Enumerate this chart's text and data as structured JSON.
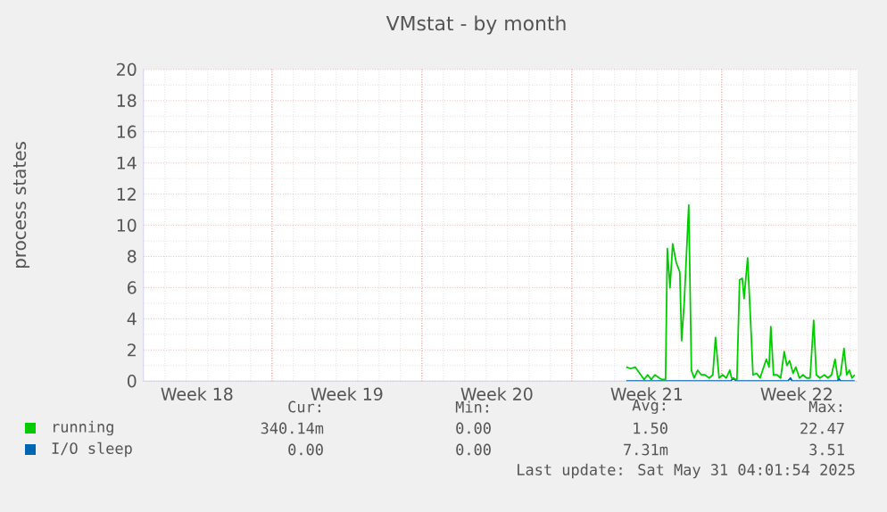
{
  "chart_data": {
    "type": "line",
    "title": "VMstat - by month",
    "ylabel": "process states",
    "xlim": [
      "2025-04-28T00:00",
      "2025-05-31T08:00"
    ],
    "ylim": [
      0,
      20
    ],
    "xticks": [
      {
        "value": "2025-04-30T12:00",
        "label": "Week 18"
      },
      {
        "value": "2025-05-07T12:00",
        "label": "Week 19"
      },
      {
        "value": "2025-05-14T12:00",
        "label": "Week 20"
      },
      {
        "value": "2025-05-21T12:00",
        "label": "Week 21"
      },
      {
        "value": "2025-05-28T12:00",
        "label": "Week 22"
      },
      {
        "value": "2025-05-04T00:00",
        "label": null
      },
      {
        "value": "2025-05-11T00:00",
        "label": null
      },
      {
        "value": "2025-05-18T00:00",
        "label": null
      },
      {
        "value": "2025-05-25T00:00",
        "label": null
      }
    ],
    "yticks": [
      0,
      2,
      4,
      6,
      8,
      10,
      12,
      14,
      16,
      18,
      20
    ],
    "grid": true,
    "legend": "bottom",
    "marker": "none",
    "line_style": "solid",
    "series": [
      {
        "name": "I/O sleep",
        "color": "#0066b3",
        "x": [
          "2025-05-20T13:00",
          "2025-05-25T10:00",
          "2025-05-25T13:00",
          "2025-05-25T16:00",
          "2025-05-28T02:00",
          "2025-05-28T05:00",
          "2025-05-28T07:00",
          "2025-05-30T10:00",
          "2025-05-30T11:00",
          "2025-05-30T13:00",
          "2025-05-31T05:00"
        ],
        "values": [
          0,
          0,
          0.2,
          0,
          0,
          0.2,
          0,
          0,
          0.2,
          0,
          0
        ]
      },
      {
        "name": "running",
        "color": "#00cc00",
        "x": [
          "2025-05-20T13:00",
          "2025-05-20T18:00",
          "2025-05-20T23:00",
          "2025-05-21T04:00",
          "2025-05-21T09:00",
          "2025-05-21T13:00",
          "2025-05-21T17:00",
          "2025-05-21T21:00",
          "2025-05-22T02:00",
          "2025-05-22T05:00",
          "2025-05-22T09:00",
          "2025-05-22T11:00",
          "2025-05-22T14:00",
          "2025-05-22T17:00",
          "2025-05-22T21:00",
          "2025-05-23T01:00",
          "2025-05-23T03:00",
          "2025-05-23T06:00",
          "2025-05-23T11:00",
          "2025-05-23T14:00",
          "2025-05-23T17:00",
          "2025-05-23T21:00",
          "2025-05-24T01:00",
          "2025-05-24T05:00",
          "2025-05-24T10:00",
          "2025-05-24T14:00",
          "2025-05-24T17:00",
          "2025-05-24T21:00",
          "2025-05-25T01:00",
          "2025-05-25T05:00",
          "2025-05-25T09:00",
          "2025-05-25T11:00",
          "2025-05-25T17:00",
          "2025-05-25T20:00",
          "2025-05-25T23:00",
          "2025-05-26T01:00",
          "2025-05-26T05:00",
          "2025-05-26T09:00",
          "2025-05-26T11:00",
          "2025-05-26T15:00",
          "2025-05-26T19:00",
          "2025-05-26T23:00",
          "2025-05-27T02:00",
          "2025-05-27T05:00",
          "2025-05-27T07:00",
          "2025-05-27T10:00",
          "2025-05-27T14:00",
          "2025-05-27T18:00",
          "2025-05-27T22:00",
          "2025-05-28T01:00",
          "2025-05-28T04:00",
          "2025-05-28T08:00",
          "2025-05-28T11:00",
          "2025-05-28T15:00",
          "2025-05-28T19:00",
          "2025-05-28T23:00",
          "2025-05-29T03:00",
          "2025-05-29T07:00",
          "2025-05-29T10:00",
          "2025-05-29T14:00",
          "2025-05-29T19:00",
          "2025-05-29T23:00",
          "2025-05-30T03:00",
          "2025-05-30T07:00",
          "2025-05-30T10:00",
          "2025-05-30T13:00",
          "2025-05-30T17:00",
          "2025-05-30T20:00",
          "2025-05-30T23:00",
          "2025-05-31T02:00",
          "2025-05-31T05:00"
        ],
        "values": [
          0.9,
          0.8,
          0.9,
          0.5,
          0.1,
          0.4,
          0.1,
          0.4,
          0.2,
          0.1,
          0.1,
          8.5,
          6,
          8.8,
          7.6,
          7,
          2.6,
          5.1,
          11.3,
          0.7,
          0.2,
          0.7,
          0.4,
          0.4,
          0.2,
          0.4,
          2.8,
          0.2,
          0.4,
          0.2,
          0.7,
          0.2,
          0.1,
          6.5,
          6.6,
          5.3,
          7.9,
          3,
          0.4,
          0.5,
          0.2,
          0.9,
          1.4,
          0.9,
          3.5,
          0.4,
          0.4,
          0.2,
          1.9,
          1,
          1.3,
          0.5,
          0.9,
          0.2,
          0.4,
          0.2,
          0.2,
          3.9,
          0.4,
          0.2,
          0.4,
          0.2,
          0.4,
          1.4,
          0.2,
          0.4,
          2.1,
          0.4,
          0.7,
          0.2,
          0.4
        ]
      }
    ],
    "annotations": [
      "Cur:",
      "Min:",
      "Avg:",
      "Max:",
      "340.14m",
      "0.00",
      "1.50",
      "22.47",
      "0.00",
      "0.00",
      "7.31m",
      "3.51",
      "Last update: Sat May 31 04:01:54 2025"
    ]
  }
}
